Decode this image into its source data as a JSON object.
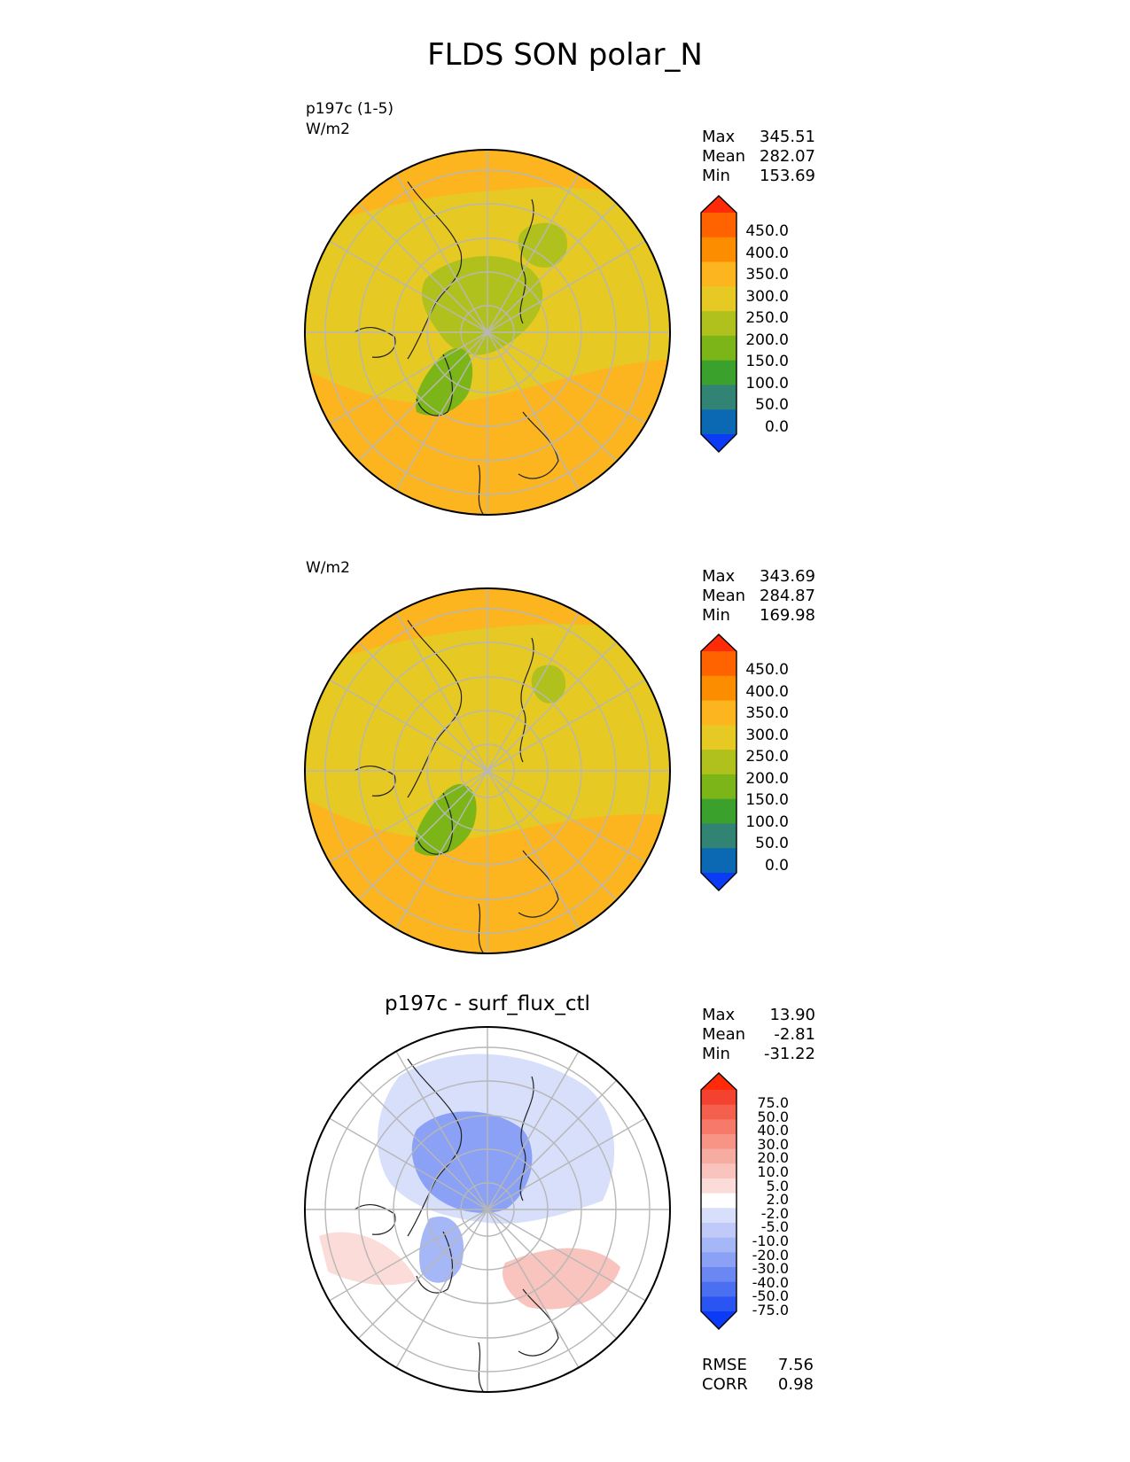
{
  "page_title": "FLDS SON polar_N",
  "colors": {
    "abs_levels": [
      "#0b3bf5",
      "#0b68b3",
      "#318473",
      "#3aa12c",
      "#7cb517",
      "#b0c11e",
      "#e6c923",
      "#fcb51f",
      "#fc8d00",
      "#ff6300",
      "#ff2a08"
    ],
    "diff_levels": [
      "#0b3bf5",
      "#2b55f3",
      "#4a6ff1",
      "#6b88f2",
      "#8aa1f5",
      "#a6b7f7",
      "#bfcaf8",
      "#d7dffa",
      "#ffffff",
      "#fbdcd8",
      "#f8c4bd",
      "#f6aca0",
      "#f79485",
      "#f7796a",
      "#f55f4d",
      "#f3422f",
      "#ff2a08"
    ]
  },
  "chart_data": [
    {
      "type": "heatmap",
      "projection": "north-polar-stereographic",
      "top_left_label": "p197c (1-5)",
      "units": "W/m2",
      "stats": {
        "max": "345.51",
        "mean": "282.07",
        "min": "153.69"
      },
      "stat_labels": {
        "max": "Max",
        "mean": "Mean",
        "min": "Min"
      },
      "colorbar_ticks": [
        "450.0",
        "400.0",
        "350.0",
        "300.0",
        "250.0",
        "200.0",
        "150.0",
        "100.0",
        "50.0",
        "0.0"
      ]
    },
    {
      "type": "heatmap",
      "projection": "north-polar-stereographic",
      "units": "W/m2",
      "stats": {
        "max": "343.69",
        "mean": "284.87",
        "min": "169.98"
      },
      "stat_labels": {
        "max": "Max",
        "mean": "Mean",
        "min": "Min"
      },
      "colorbar_ticks": [
        "450.0",
        "400.0",
        "350.0",
        "300.0",
        "250.0",
        "200.0",
        "150.0",
        "100.0",
        "50.0",
        "0.0"
      ]
    },
    {
      "type": "heatmap",
      "projection": "north-polar-stereographic",
      "title": "p197c - surf_flux_ctl",
      "stats": {
        "max": "13.90",
        "mean": "-2.81",
        "min": "-31.22"
      },
      "stat_labels": {
        "max": "Max",
        "mean": "Mean",
        "min": "Min"
      },
      "colorbar_ticks": [
        "75.0",
        "50.0",
        "40.0",
        "30.0",
        "20.0",
        "10.0",
        "5.0",
        "2.0",
        "-2.0",
        "-5.0",
        "-10.0",
        "-20.0",
        "-30.0",
        "-40.0",
        "-50.0",
        "-75.0"
      ],
      "metrics": {
        "rmse_label": "RMSE",
        "rmse": "7.56",
        "corr_label": "CORR",
        "corr": "0.98"
      }
    }
  ]
}
